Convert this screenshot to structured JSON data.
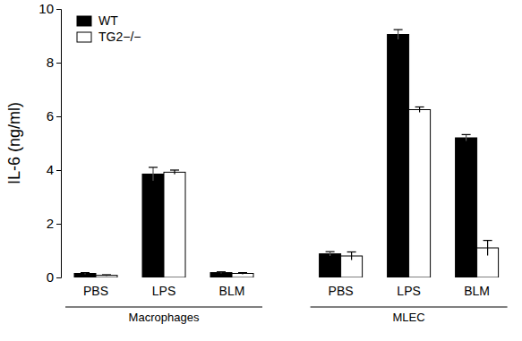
{
  "chart_data": {
    "type": "bar",
    "y_label": "IL-6 (ng/ml)",
    "categories": [
      "PBS",
      "LPS",
      "BLM",
      "PBS",
      "LPS",
      "BLM"
    ],
    "category_groups": [
      "Macrophages",
      "Macrophages",
      "Macrophages",
      "MLEC",
      "MLEC",
      "MLEC"
    ],
    "series": [
      {
        "name": "WT",
        "color": "#000000",
        "values": [
          0.15,
          3.85,
          0.18,
          0.88,
          9.05,
          5.2
        ],
        "errors": [
          0.03,
          0.25,
          0.03,
          0.08,
          0.18,
          0.12
        ]
      },
      {
        "name": "TG2−/−",
        "color": "#ffffff",
        "values": [
          0.08,
          3.92,
          0.15,
          0.8,
          6.25,
          1.1
        ],
        "errors": [
          0.02,
          0.08,
          0.03,
          0.15,
          0.1,
          0.28
        ]
      }
    ],
    "ylim": [
      0,
      10
    ],
    "yticks": [
      0,
      2,
      4,
      6,
      8,
      10
    ],
    "legend": "upper left"
  }
}
